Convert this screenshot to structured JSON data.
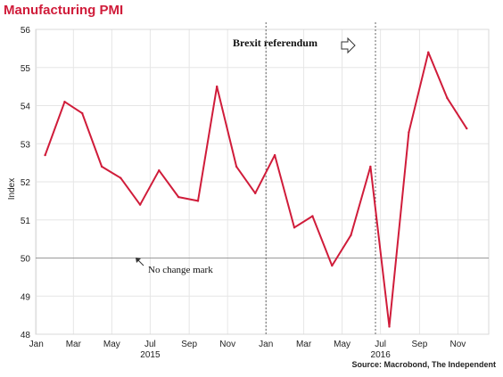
{
  "title": "Manufacturing PMI",
  "source": "Source: Macrobond, The Independent",
  "colors": {
    "title": "#d01c3a",
    "line": "#d01c3a",
    "grid": "#e6e6e6",
    "baseline": "#9a9a9a"
  },
  "chart_data": {
    "type": "line",
    "title": "Manufacturing PMI",
    "xlabel": "",
    "ylabel": "Index",
    "ylim": [
      48,
      56
    ],
    "yticks": [
      "48",
      "49",
      "50",
      "51",
      "52",
      "53",
      "54",
      "55",
      "56"
    ],
    "xlim": [
      "2014-12-31",
      "2016-12-20"
    ],
    "x_tick_labels": [
      {
        "date": "2015-01-01",
        "label": "Jan"
      },
      {
        "date": "2015-03-01",
        "label": "Mar"
      },
      {
        "date": "2015-05-01",
        "label": "May"
      },
      {
        "date": "2015-07-01",
        "label": "Jul"
      },
      {
        "date": "2015-09-01",
        "label": "Sep"
      },
      {
        "date": "2015-11-01",
        "label": "Nov"
      },
      {
        "date": "2016-01-01",
        "label": "Jan"
      },
      {
        "date": "2016-03-01",
        "label": "Mar"
      },
      {
        "date": "2016-05-01",
        "label": "May"
      },
      {
        "date": "2016-07-01",
        "label": "Jul"
      },
      {
        "date": "2016-09-01",
        "label": "Sep"
      },
      {
        "date": "2016-11-01",
        "label": "Nov"
      }
    ],
    "year_labels": [
      {
        "date": "2015-07-01",
        "label": "2015"
      },
      {
        "date": "2016-07-01",
        "label": "2016"
      }
    ],
    "grid": true,
    "series": [
      {
        "x": [
          "2015-01-15",
          "2015-02-15",
          "2015-03-15",
          "2015-04-15",
          "2015-05-15",
          "2015-06-15",
          "2015-07-15",
          "2015-08-15",
          "2015-09-15",
          "2015-10-15",
          "2015-11-15",
          "2015-12-15",
          "2016-01-15",
          "2016-02-15",
          "2016-03-15",
          "2016-04-15",
          "2016-05-15",
          "2016-06-15",
          "2016-07-15",
          "2016-08-15",
          "2016-09-15",
          "2016-10-15",
          "2016-11-15"
        ],
        "values": [
          52.7,
          54.1,
          53.8,
          52.4,
          52.1,
          51.4,
          52.3,
          51.6,
          51.5,
          54.5,
          52.4,
          51.7,
          52.7,
          50.8,
          51.1,
          49.8,
          50.6,
          52.4,
          48.2,
          53.3,
          55.4,
          54.2,
          53.4
        ]
      }
    ],
    "reference_line": {
      "value": 50,
      "label": "No change mark"
    },
    "vertical_markers": [
      {
        "date": "2016-01-01",
        "label": ""
      },
      {
        "date": "2016-06-23",
        "label": "Brexit referendum"
      }
    ]
  }
}
